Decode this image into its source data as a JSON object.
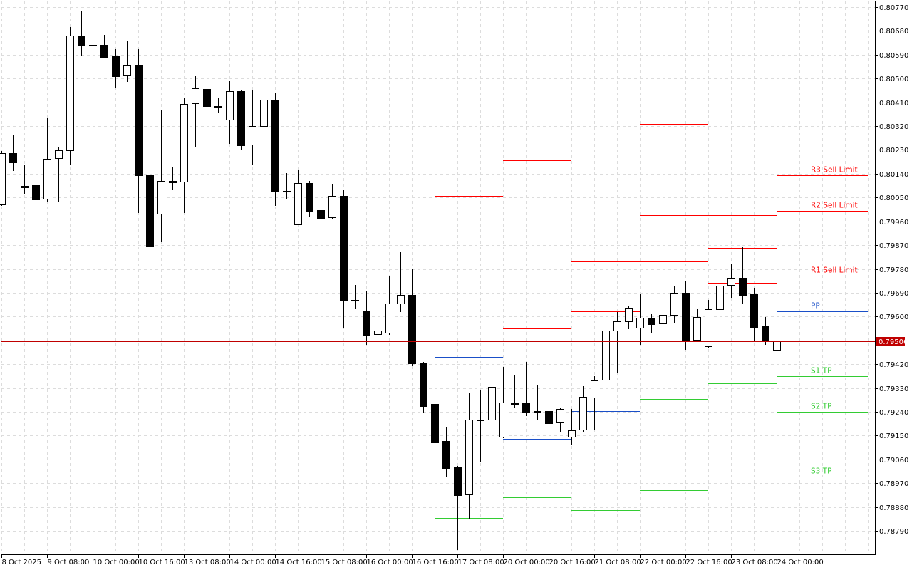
{
  "chart_data": {
    "type": "candlestick",
    "ylim": [
      0.787,
      0.8079
    ],
    "grid": true,
    "y_ticks": [
      "0.80770",
      "0.80680",
      "0.80590",
      "0.80500",
      "0.80410",
      "0.80320",
      "0.80230",
      "0.80140",
      "0.80050",
      "0.79960",
      "0.79870",
      "0.79780",
      "0.79690",
      "0.79600",
      "0.79420",
      "0.79330",
      "0.79240",
      "0.79150",
      "0.79060",
      "0.78970",
      "0.78880",
      "0.78790"
    ],
    "x_ticks": [
      {
        "bar": 0,
        "label": "8 Oct 2025"
      },
      {
        "bar": 4,
        "label": "9 Oct 08:00"
      },
      {
        "bar": 8,
        "label": "10 Oct 00:00"
      },
      {
        "bar": 12,
        "label": "10 Oct 16:00"
      },
      {
        "bar": 16,
        "label": "13 Oct 08:00"
      },
      {
        "bar": 20,
        "label": "14 Oct 00:00"
      },
      {
        "bar": 24,
        "label": "14 Oct 16:00"
      },
      {
        "bar": 28,
        "label": "15 Oct 08:00"
      },
      {
        "bar": 32,
        "label": "16 Oct 00:00"
      },
      {
        "bar": 36,
        "label": "16 Oct 16:00"
      },
      {
        "bar": 40,
        "label": "17 Oct 08:00"
      },
      {
        "bar": 44,
        "label": "20 Oct 00:00"
      },
      {
        "bar": 48,
        "label": "20 Oct 16:00"
      },
      {
        "bar": 52,
        "label": "21 Oct 08:00"
      },
      {
        "bar": 56,
        "label": "22 Oct 00:00"
      },
      {
        "bar": 60,
        "label": "22 Oct 16:00"
      },
      {
        "bar": 64,
        "label": "23 Oct 08:00"
      },
      {
        "bar": 68,
        "label": "24 Oct 00:00"
      }
    ],
    "ohlc_fields": [
      "open",
      "high",
      "low",
      "close"
    ],
    "candles": [
      [
        0.80024,
        0.80226,
        0.80018,
        0.80218
      ],
      [
        0.80218,
        0.80285,
        0.8015,
        0.80183
      ],
      [
        0.80088,
        0.80175,
        0.80064,
        0.80094
      ],
      [
        0.80097,
        0.80099,
        0.80018,
        0.80043
      ],
      [
        0.80045,
        0.8035,
        0.80035,
        0.80196
      ],
      [
        0.80199,
        0.80239,
        0.80032,
        0.80229
      ],
      [
        0.80229,
        0.80695,
        0.80172,
        0.80662
      ],
      [
        0.80662,
        0.80757,
        0.80584,
        0.80625
      ],
      [
        0.80627,
        0.80673,
        0.80498,
        0.80625
      ],
      [
        0.80627,
        0.80665,
        0.80579,
        0.80581
      ],
      [
        0.80584,
        0.80611,
        0.80466,
        0.80509
      ],
      [
        0.80514,
        0.80643,
        0.80487,
        0.80552
      ],
      [
        0.80552,
        0.80611,
        0.79991,
        0.80134
      ],
      [
        0.80134,
        0.80207,
        0.79824,
        0.79865
      ],
      [
        0.79989,
        0.80382,
        0.79884,
        0.80113
      ],
      [
        0.80113,
        0.80164,
        0.80078,
        0.80107
      ],
      [
        0.8011,
        0.80425,
        0.79991,
        0.80404
      ],
      [
        0.80406,
        0.80511,
        0.80242,
        0.80463
      ],
      [
        0.8046,
        0.80573,
        0.80366,
        0.80396
      ],
      [
        0.80396,
        0.80428,
        0.80369,
        0.8039
      ],
      [
        0.80344,
        0.80493,
        0.80253,
        0.80452
      ],
      [
        0.80452,
        0.80455,
        0.80229,
        0.80247
      ],
      [
        0.8025,
        0.80458,
        0.80172,
        0.8032
      ],
      [
        0.8032,
        0.80479,
        0.8032,
        0.8042
      ],
      [
        0.8042,
        0.80444,
        0.80018,
        0.80072
      ],
      [
        0.80075,
        0.80142,
        0.80043,
        0.80072
      ],
      [
        0.79948,
        0.80153,
        0.79948,
        0.80105
      ],
      [
        0.80105,
        0.80113,
        0.79978,
        0.79997
      ],
      [
        0.80002,
        0.80013,
        0.79897,
        0.7997
      ],
      [
        0.79975,
        0.80102,
        0.79967,
        0.80056
      ],
      [
        0.80056,
        0.8008,
        0.79558,
        0.7966
      ],
      [
        0.79663,
        0.79719,
        0.7963,
        0.7966
      ],
      [
        0.7962,
        0.79698,
        0.79493,
        0.79531
      ],
      [
        0.79534,
        0.79552,
        0.79321,
        0.79547
      ],
      [
        0.79539,
        0.79754,
        0.79531,
        0.79649
      ],
      [
        0.79649,
        0.79843,
        0.79617,
        0.79682
      ],
      [
        0.79682,
        0.79781,
        0.79412,
        0.79423
      ],
      [
        0.79426,
        0.79428,
        0.79234,
        0.79261
      ],
      [
        0.79269,
        0.79286,
        0.79081,
        0.79124
      ],
      [
        0.79129,
        0.79183,
        0.78995,
        0.79027
      ],
      [
        0.79032,
        0.79035,
        0.78717,
        0.78925
      ],
      [
        0.78927,
        0.79312,
        0.78833,
        0.7921
      ],
      [
        0.7921,
        0.79323,
        0.79048,
        0.79207
      ],
      [
        0.7921,
        0.79358,
        0.79172,
        0.79334
      ],
      [
        0.79145,
        0.79409,
        0.7914,
        0.79275
      ],
      [
        0.79272,
        0.79377,
        0.79253,
        0.79269
      ],
      [
        0.79272,
        0.79428,
        0.79224,
        0.7924
      ],
      [
        0.79242,
        0.79339,
        0.7921,
        0.79241
      ],
      [
        0.79242,
        0.79286,
        0.79051,
        0.79197
      ],
      [
        0.79202,
        0.79253,
        0.79164,
        0.79251
      ],
      [
        0.79145,
        0.79251,
        0.79116,
        0.7917
      ],
      [
        0.79172,
        0.79337,
        0.79162,
        0.79296
      ],
      [
        0.79294,
        0.79375,
        0.79172,
        0.79358
      ],
      [
        0.79361,
        0.79593,
        0.79356,
        0.79547
      ],
      [
        0.79547,
        0.79617,
        0.79388,
        0.79582
      ],
      [
        0.79582,
        0.79639,
        0.79552,
        0.79633
      ],
      [
        0.79558,
        0.79687,
        0.79493,
        0.79595
      ],
      [
        0.79593,
        0.79609,
        0.79539,
        0.79571
      ],
      [
        0.79574,
        0.79684,
        0.79507,
        0.79606
      ],
      [
        0.79606,
        0.79717,
        0.79574,
        0.7969
      ],
      [
        0.7969,
        0.79733,
        0.79474,
        0.79509
      ],
      [
        0.79512,
        0.7963,
        0.79504,
        0.79598
      ],
      [
        0.79488,
        0.79663,
        0.7948,
        0.79628
      ],
      [
        0.79628,
        0.7976,
        0.79625,
        0.79717
      ],
      [
        0.79719,
        0.79797,
        0.79671,
        0.79746
      ],
      [
        0.79746,
        0.79862,
        0.79649,
        0.79682
      ],
      [
        0.79684,
        0.79709,
        0.79504,
        0.79558
      ],
      [
        0.79563,
        0.79598,
        0.79493,
        0.79512
      ],
      [
        0.79474,
        0.79506,
        0.79474,
        0.79506
      ]
    ],
    "current_price": "0.79506",
    "pivot_levels": [
      {
        "from_bar": 38,
        "to_bar": 44,
        "levels": [
          {
            "price": 0.80269,
            "color": "#ff0000"
          },
          {
            "price": 0.80056,
            "color": "#ff0000"
          },
          {
            "price": 0.7966,
            "color": "#ff0000"
          },
          {
            "price": 0.79447,
            "color": "#1a4fc8"
          },
          {
            "price": 0.79051,
            "color": "#33cc33"
          },
          {
            "price": 0.78838,
            "color": "#33cc33"
          }
        ]
      },
      {
        "from_bar": 44,
        "to_bar": 50,
        "levels": [
          {
            "price": 0.80191,
            "color": "#ff0000"
          },
          {
            "price": 0.79773,
            "color": "#ff0000"
          },
          {
            "price": 0.79555,
            "color": "#ff0000"
          },
          {
            "price": 0.79137,
            "color": "#1a4fc8"
          },
          {
            "price": 0.78917,
            "color": "#33cc33"
          }
        ]
      },
      {
        "from_bar": 50,
        "to_bar": 56,
        "levels": [
          {
            "price": 0.79808,
            "color": "#ff0000"
          },
          {
            "price": 0.7962,
            "color": "#ff0000"
          },
          {
            "price": 0.79434,
            "color": "#ff0000"
          },
          {
            "price": 0.79242,
            "color": "#1a4fc8"
          },
          {
            "price": 0.79059,
            "color": "#33cc33"
          },
          {
            "price": 0.78868,
            "color": "#33cc33"
          }
        ]
      },
      {
        "from_bar": 56,
        "to_bar": 62,
        "levels": [
          {
            "price": 0.80328,
            "color": "#ff0000"
          },
          {
            "price": 0.79983,
            "color": "#ff0000"
          },
          {
            "price": 0.79808,
            "color": "#ff0000"
          },
          {
            "price": 0.79463,
            "color": "#1a4fc8"
          },
          {
            "price": 0.79288,
            "color": "#33cc33"
          },
          {
            "price": 0.78943,
            "color": "#33cc33"
          },
          {
            "price": 0.78768,
            "color": "#33cc33"
          }
        ]
      },
      {
        "from_bar": 62,
        "to_bar": 68,
        "levels": [
          {
            "price": 0.79983,
            "color": "#ff0000"
          },
          {
            "price": 0.79859,
            "color": "#ff0000"
          },
          {
            "price": 0.79727,
            "color": "#ff0000"
          },
          {
            "price": 0.79604,
            "color": "#1a4fc8"
          },
          {
            "price": 0.79471,
            "color": "#33cc33"
          },
          {
            "price": 0.79348,
            "color": "#33cc33"
          },
          {
            "price": 0.79218,
            "color": "#33cc33"
          }
        ]
      },
      {
        "from_bar": 68,
        "to_bar": 76,
        "levels": [
          {
            "price": 0.80134,
            "color": "#ff0000",
            "label": "R3 Sell Limit"
          },
          {
            "price": 0.79999,
            "color": "#ff0000",
            "label": "R2 Sell Limit"
          },
          {
            "price": 0.79754,
            "color": "#ff0000",
            "label": "R1 Sell Limit"
          },
          {
            "price": 0.7962,
            "color": "#1a4fc8",
            "label": "PP"
          },
          {
            "price": 0.79375,
            "color": "#33cc33",
            "label": "S1 TP"
          },
          {
            "price": 0.7924,
            "color": "#33cc33",
            "label": "S2 TP"
          },
          {
            "price": 0.78995,
            "color": "#33cc33",
            "label": "S3 TP"
          }
        ]
      }
    ],
    "colors": {
      "bull_body": "#ffffff",
      "bear_body": "#000000",
      "wick": "#000000",
      "grid": "#dcdcdc",
      "current_price_line": "#c00000",
      "current_price_tag": "#c00000"
    }
  }
}
